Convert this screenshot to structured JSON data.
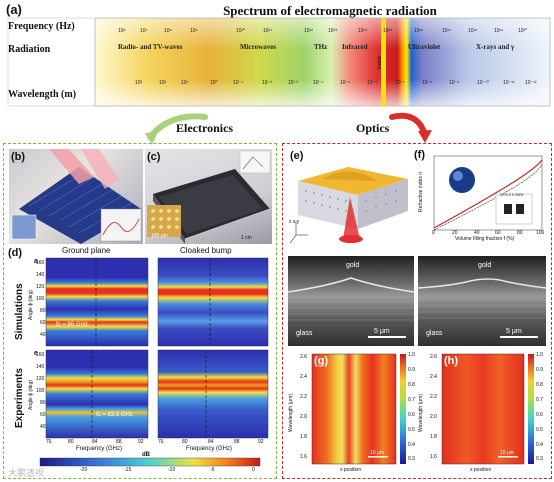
{
  "panel_a": {
    "letter": "(a)",
    "title": "Spectrum of electromagnetic radiation",
    "row_frequency": "Frequency (Hz)",
    "row_radiation": "Radiation",
    "row_wavelength": "Wavelength (m)",
    "freq_ticks": [
      "10⁶",
      "10⁷",
      "10⁸",
      "10⁹",
      "10¹⁰",
      "10¹¹",
      "10¹²",
      "10¹³",
      "10¹⁴",
      "10¹⁵",
      "10¹⁶",
      "10¹⁷",
      "10¹⁸",
      "10¹⁹",
      "10²⁰"
    ],
    "wave_ticks": [
      "10³",
      "10²",
      "10¹",
      "10⁰",
      "10⁻¹",
      "10⁻²",
      "10⁻³",
      "10⁻⁴",
      "10⁻⁵",
      "10⁻⁶",
      "10⁻⁷",
      "10⁻⁸",
      "10⁻⁹",
      "10⁻¹⁰",
      "10⁻¹¹",
      "10⁻¹²"
    ],
    "bands": [
      "Radio- and TV-waves",
      "Microwaves",
      "THz",
      "Infrared",
      "Visible",
      "Ultraviolet",
      "X-rays and γ"
    ]
  },
  "groups": {
    "electronics": "Electronics",
    "optics": "Optics"
  },
  "panel_b": {
    "letter": "(b)"
  },
  "panel_c": {
    "letter": "(c)",
    "scale_micro": "100 μm",
    "scale_cm": "1 cm"
  },
  "panel_d": {
    "letter": "(d)",
    "col_ground": "Ground plane",
    "col_cloaked": "Cloaked bump",
    "row_sim": "Simulations",
    "row_exp": "Experiments",
    "sub_a": "a",
    "sub_e": "e",
    "fc_sim": "fc = 86 GHz",
    "fc_exp": "fc = 83.5 GHz",
    "ylabel": "Angle ϕ (deg)",
    "xlabel": "Frequency (GHz)",
    "yticks": [
      "160",
      "140",
      "120",
      "100",
      "80",
      "60",
      "40",
      "20"
    ],
    "xticks_left": [
      "76",
      "80",
      "84",
      "88",
      "92"
    ],
    "xticks_right": [
      "76",
      "80",
      "84",
      "88",
      "92"
    ],
    "cbar_ticks": [
      "-20",
      "-15",
      "-10",
      "-5",
      "0"
    ],
    "cbar_unit": "dB"
  },
  "panel_e": {
    "letter": "(e)",
    "axes": "z x y"
  },
  "panel_f": {
    "letter": "(f)",
    "ylabel": "Refractive index n",
    "xlabel": "Volume filling fraction f (%)",
    "xticks": [
      "0",
      "20",
      "40",
      "60",
      "80",
      "100"
    ],
    "inset_text": "N=3.3  f=33%"
  },
  "sem": {
    "gold_left": "gold",
    "gold_right": "gold",
    "glass_left": "glass",
    "glass_right": "glass",
    "scale_left": "5 μm",
    "scale_right": "5 μm"
  },
  "panel_g": {
    "letter": "(g)",
    "ylabel": "Wavelength (μm)",
    "xlabel": "x position",
    "yticks": [
      "2.6",
      "2.4",
      "2.2",
      "2.0",
      "1.8",
      "1.6"
    ],
    "cbar": [
      "1.0",
      "0.9",
      "0.8",
      "0.7",
      "0.6",
      "0.5",
      "0.4",
      "0.3"
    ],
    "scale": "10 μm"
  },
  "panel_h": {
    "letter": "(h)",
    "ylabel": "Wavelength (μm)",
    "xlabel": "x position",
    "yticks": [
      "2.6",
      "2.4",
      "2.2",
      "2.0",
      "1.8",
      "1.6"
    ],
    "cbar": [
      "1.0",
      "0.9",
      "0.8",
      "0.7",
      "0.6",
      "0.5",
      "0.4",
      "0.3"
    ],
    "scale": "10 μm"
  },
  "watermark": "大鹏透视"
}
